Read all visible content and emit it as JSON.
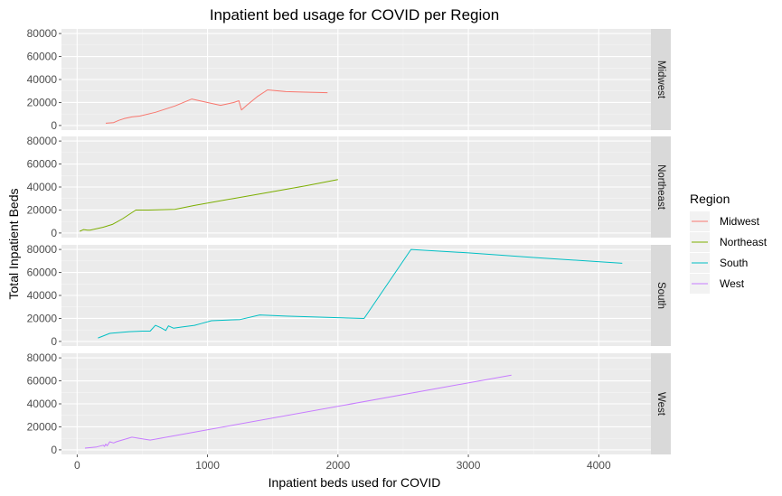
{
  "chart_data": {
    "type": "line",
    "title": "Inpatient bed usage for COVID per Region",
    "xlabel": "Inpatient beds used for COVID",
    "ylabel": "Total Inpatient Beds",
    "xlim": [
      -120,
      4400
    ],
    "ylim": [
      -4000,
      84000
    ],
    "xticks": [
      0,
      1000,
      2000,
      3000,
      4000
    ],
    "yticks": [
      0,
      20000,
      40000,
      60000,
      80000
    ],
    "grid": true,
    "facets": [
      "Midwest",
      "Northeast",
      "South",
      "West"
    ],
    "legend": {
      "title": "Region",
      "placement": "right",
      "entries": [
        "Midwest",
        "Northeast",
        "South",
        "West"
      ]
    },
    "series": [
      {
        "name": "Midwest",
        "color": "#F8766D",
        "x": [
          220,
          280,
          320,
          360,
          420,
          480,
          600,
          750,
          880,
          1000,
          1100,
          1200,
          1240,
          1260,
          1300,
          1380,
          1460,
          1600,
          1750,
          1920
        ],
        "y": [
          2000,
          2500,
          4500,
          6000,
          7500,
          8200,
          11500,
          17000,
          23000,
          20000,
          17500,
          20000,
          21500,
          13500,
          17500,
          25000,
          31000,
          29500,
          29000,
          28500
        ]
      },
      {
        "name": "Northeast",
        "color": "#7CAE00",
        "x": [
          20,
          50,
          80,
          100,
          200,
          270,
          350,
          450,
          550,
          750,
          900,
          1200,
          1500,
          1750,
          2000
        ],
        "y": [
          1500,
          3000,
          2500,
          2500,
          5000,
          7500,
          12500,
          20000,
          20000,
          20500,
          24000,
          30000,
          36000,
          41000,
          46500
        ]
      },
      {
        "name": "South",
        "color": "#00BFC4",
        "x": [
          160,
          250,
          400,
          500,
          560,
          600,
          640,
          680,
          700,
          740,
          800,
          900,
          950,
          1030,
          1250,
          1400,
          1600,
          2200,
          2560,
          3000,
          3500,
          4180
        ],
        "y": [
          3000,
          7000,
          8500,
          9000,
          9000,
          14000,
          12000,
          9500,
          13500,
          11500,
          12500,
          14000,
          15500,
          18000,
          19000,
          23000,
          22000,
          20000,
          80000,
          77000,
          73000,
          68000
        ]
      },
      {
        "name": "West",
        "color": "#C77CFF",
        "x": [
          60,
          150,
          200,
          210,
          220,
          230,
          250,
          280,
          300,
          420,
          560,
          3330
        ],
        "y": [
          1500,
          2500,
          4000,
          3000,
          5000,
          3500,
          7000,
          6000,
          7000,
          11000,
          8500,
          65000
        ]
      }
    ]
  }
}
